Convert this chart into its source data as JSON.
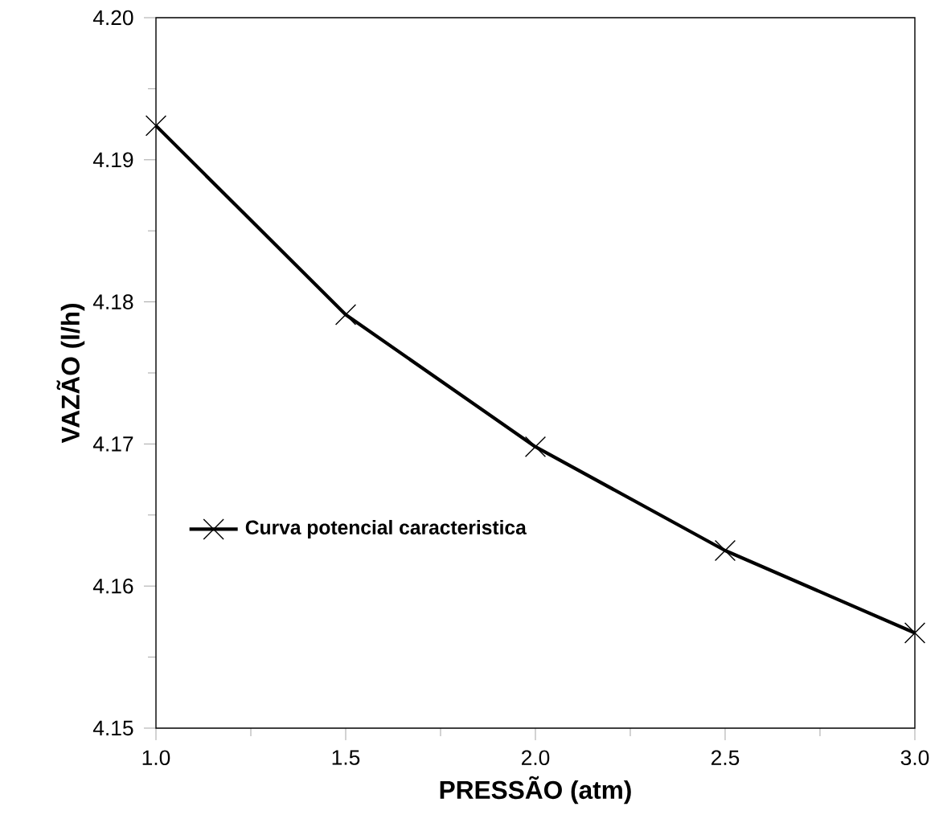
{
  "chart_data": {
    "type": "line",
    "xlabel": "PRESSÃO (atm)",
    "ylabel": "VAZÃO (l/h)",
    "x": [
      1.0,
      1.5,
      2.0,
      2.5,
      3.0
    ],
    "series": [
      {
        "name": "Curva potencial caracteristica",
        "color": "#000000",
        "values": [
          4.1924,
          4.1791,
          4.1698,
          4.1625,
          4.1567
        ]
      }
    ],
    "xlim": [
      1.0,
      3.0
    ],
    "xticks": [
      {
        "value": 1,
        "label": "1.0"
      },
      1.5,
      {
        "value": 2,
        "label": "2.0"
      },
      2.5,
      {
        "value": 3,
        "label": "3.0"
      }
    ],
    "ylim": [
      4.15,
      4.2
    ],
    "yticks": [
      4.15,
      4.16,
      4.17,
      4.18,
      4.19,
      {
        "value": 4.2,
        "label": "4.20"
      }
    ],
    "grid": false,
    "legend": "bottom left",
    "marker": "cross",
    "line_style": "solid"
  }
}
